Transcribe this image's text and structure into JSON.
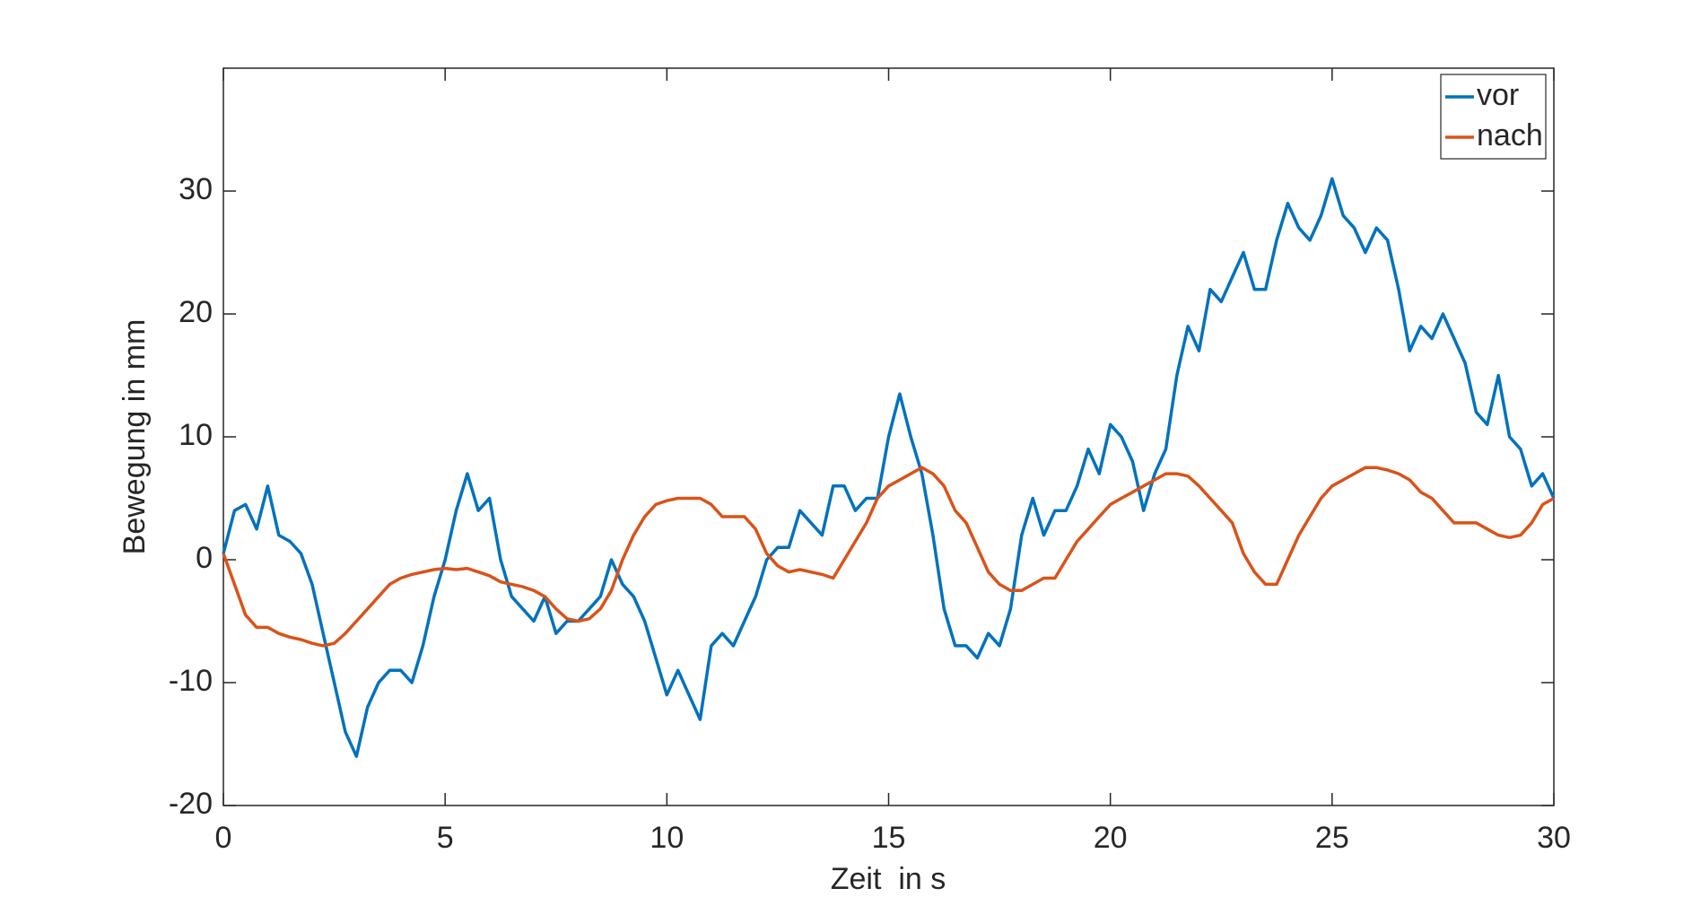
{
  "chart_data": {
    "type": "line",
    "xlabel": "Zeit  in s",
    "ylabel": "Bewegung in mm",
    "x": [
      0,
      0.25,
      0.5,
      0.75,
      1,
      1.25,
      1.5,
      1.75,
      2,
      2.25,
      2.5,
      2.75,
      3,
      3.25,
      3.5,
      3.75,
      4,
      4.25,
      4.5,
      4.75,
      5,
      5.25,
      5.5,
      5.75,
      6,
      6.25,
      6.5,
      6.75,
      7,
      7.25,
      7.5,
      7.75,
      8,
      8.25,
      8.5,
      8.75,
      9,
      9.25,
      9.5,
      9.75,
      10,
      10.25,
      10.5,
      10.75,
      11,
      11.25,
      11.5,
      11.75,
      12,
      12.25,
      12.5,
      12.75,
      13,
      13.25,
      13.5,
      13.75,
      14,
      14.25,
      14.5,
      14.75,
      15,
      15.25,
      15.5,
      15.75,
      16,
      16.25,
      16.5,
      16.75,
      17,
      17.25,
      17.5,
      17.75,
      18,
      18.25,
      18.5,
      18.75,
      19,
      19.25,
      19.5,
      19.75,
      20,
      20.25,
      20.5,
      20.75,
      21,
      21.25,
      21.5,
      21.75,
      22,
      22.25,
      22.5,
      22.75,
      23,
      23.25,
      23.5,
      23.75,
      24,
      24.25,
      24.5,
      24.75,
      25,
      25.25,
      25.5,
      25.75,
      26,
      26.25,
      26.5,
      26.75,
      27,
      27.25,
      27.5,
      27.75,
      28,
      28.25,
      28.5,
      28.75,
      29,
      29.25,
      29.5,
      29.75,
      30
    ],
    "series": [
      {
        "name": "vor",
        "color": "#0072bd",
        "values": [
          0.5,
          4,
          4.5,
          2.5,
          6,
          2,
          1.5,
          0.5,
          -2,
          -6,
          -10,
          -14,
          -16,
          -12,
          -10,
          -9,
          -9,
          -10,
          -7,
          -3,
          0,
          4,
          7,
          4,
          5,
          0,
          -3,
          -4,
          -5,
          -3,
          -6,
          -5,
          -5,
          -4,
          -3,
          0,
          -2,
          -3,
          -5,
          -8,
          -11,
          -9,
          -11,
          -13,
          -7,
          -6,
          -7,
          -5,
          -3,
          0,
          1,
          1,
          4,
          3,
          2,
          6,
          6,
          4,
          5,
          5,
          10,
          13.5,
          10,
          7,
          2,
          -4,
          -7,
          -7,
          -8,
          -6,
          -7,
          -4,
          2,
          5,
          2,
          4,
          4,
          6,
          9,
          7,
          11,
          10,
          8,
          4,
          7,
          9,
          15,
          19,
          17,
          22,
          21,
          23,
          25,
          22,
          22,
          26,
          29,
          27,
          26,
          28,
          31,
          28,
          27,
          25,
          27,
          26,
          22,
          17,
          19,
          18,
          20,
          18,
          16,
          12,
          11,
          15,
          10,
          9,
          6,
          7,
          5
        ]
      },
      {
        "name": "nach",
        "color": "#d95319",
        "values": [
          0.5,
          -2,
          -4.5,
          -5.5,
          -5.5,
          -6,
          -6.3,
          -6.5,
          -6.8,
          -7,
          -6.8,
          -6,
          -5,
          -4,
          -3,
          -2,
          -1.5,
          -1.2,
          -1,
          -0.8,
          -0.7,
          -0.8,
          -0.7,
          -1,
          -1.3,
          -1.8,
          -2,
          -2.2,
          -2.5,
          -3,
          -4,
          -4.8,
          -5,
          -4.8,
          -4,
          -2.5,
          0,
          2,
          3.5,
          4.5,
          4.8,
          5,
          5,
          5,
          4.5,
          3.5,
          3.5,
          3.5,
          2.5,
          0.5,
          -0.5,
          -1,
          -0.8,
          -1,
          -1.2,
          -1.5,
          0,
          1.5,
          3,
          5,
          6,
          6.5,
          7,
          7.5,
          7,
          6,
          4,
          3,
          1,
          -1,
          -2,
          -2.5,
          -2.5,
          -2,
          -1.5,
          -1.5,
          0,
          1.5,
          2.5,
          3.5,
          4.5,
          5,
          5.5,
          6,
          6.5,
          7,
          7,
          6.8,
          6,
          5,
          4,
          3,
          0.5,
          -1,
          -2,
          -2,
          0,
          2,
          3.5,
          5,
          6,
          6.5,
          7,
          7.5,
          7.5,
          7.3,
          7,
          6.5,
          5.5,
          5,
          4,
          3,
          3,
          3,
          2.5,
          2,
          1.8,
          2,
          3,
          4.5,
          5
        ]
      }
    ],
    "xlim": [
      0,
      30
    ],
    "xticks": [
      0,
      5,
      10,
      15,
      20,
      25,
      30
    ],
    "ylim": [
      -20,
      40
    ],
    "yticks": [
      -20,
      -10,
      0,
      10,
      20,
      30
    ],
    "legend": "upper right",
    "grid": false
  }
}
